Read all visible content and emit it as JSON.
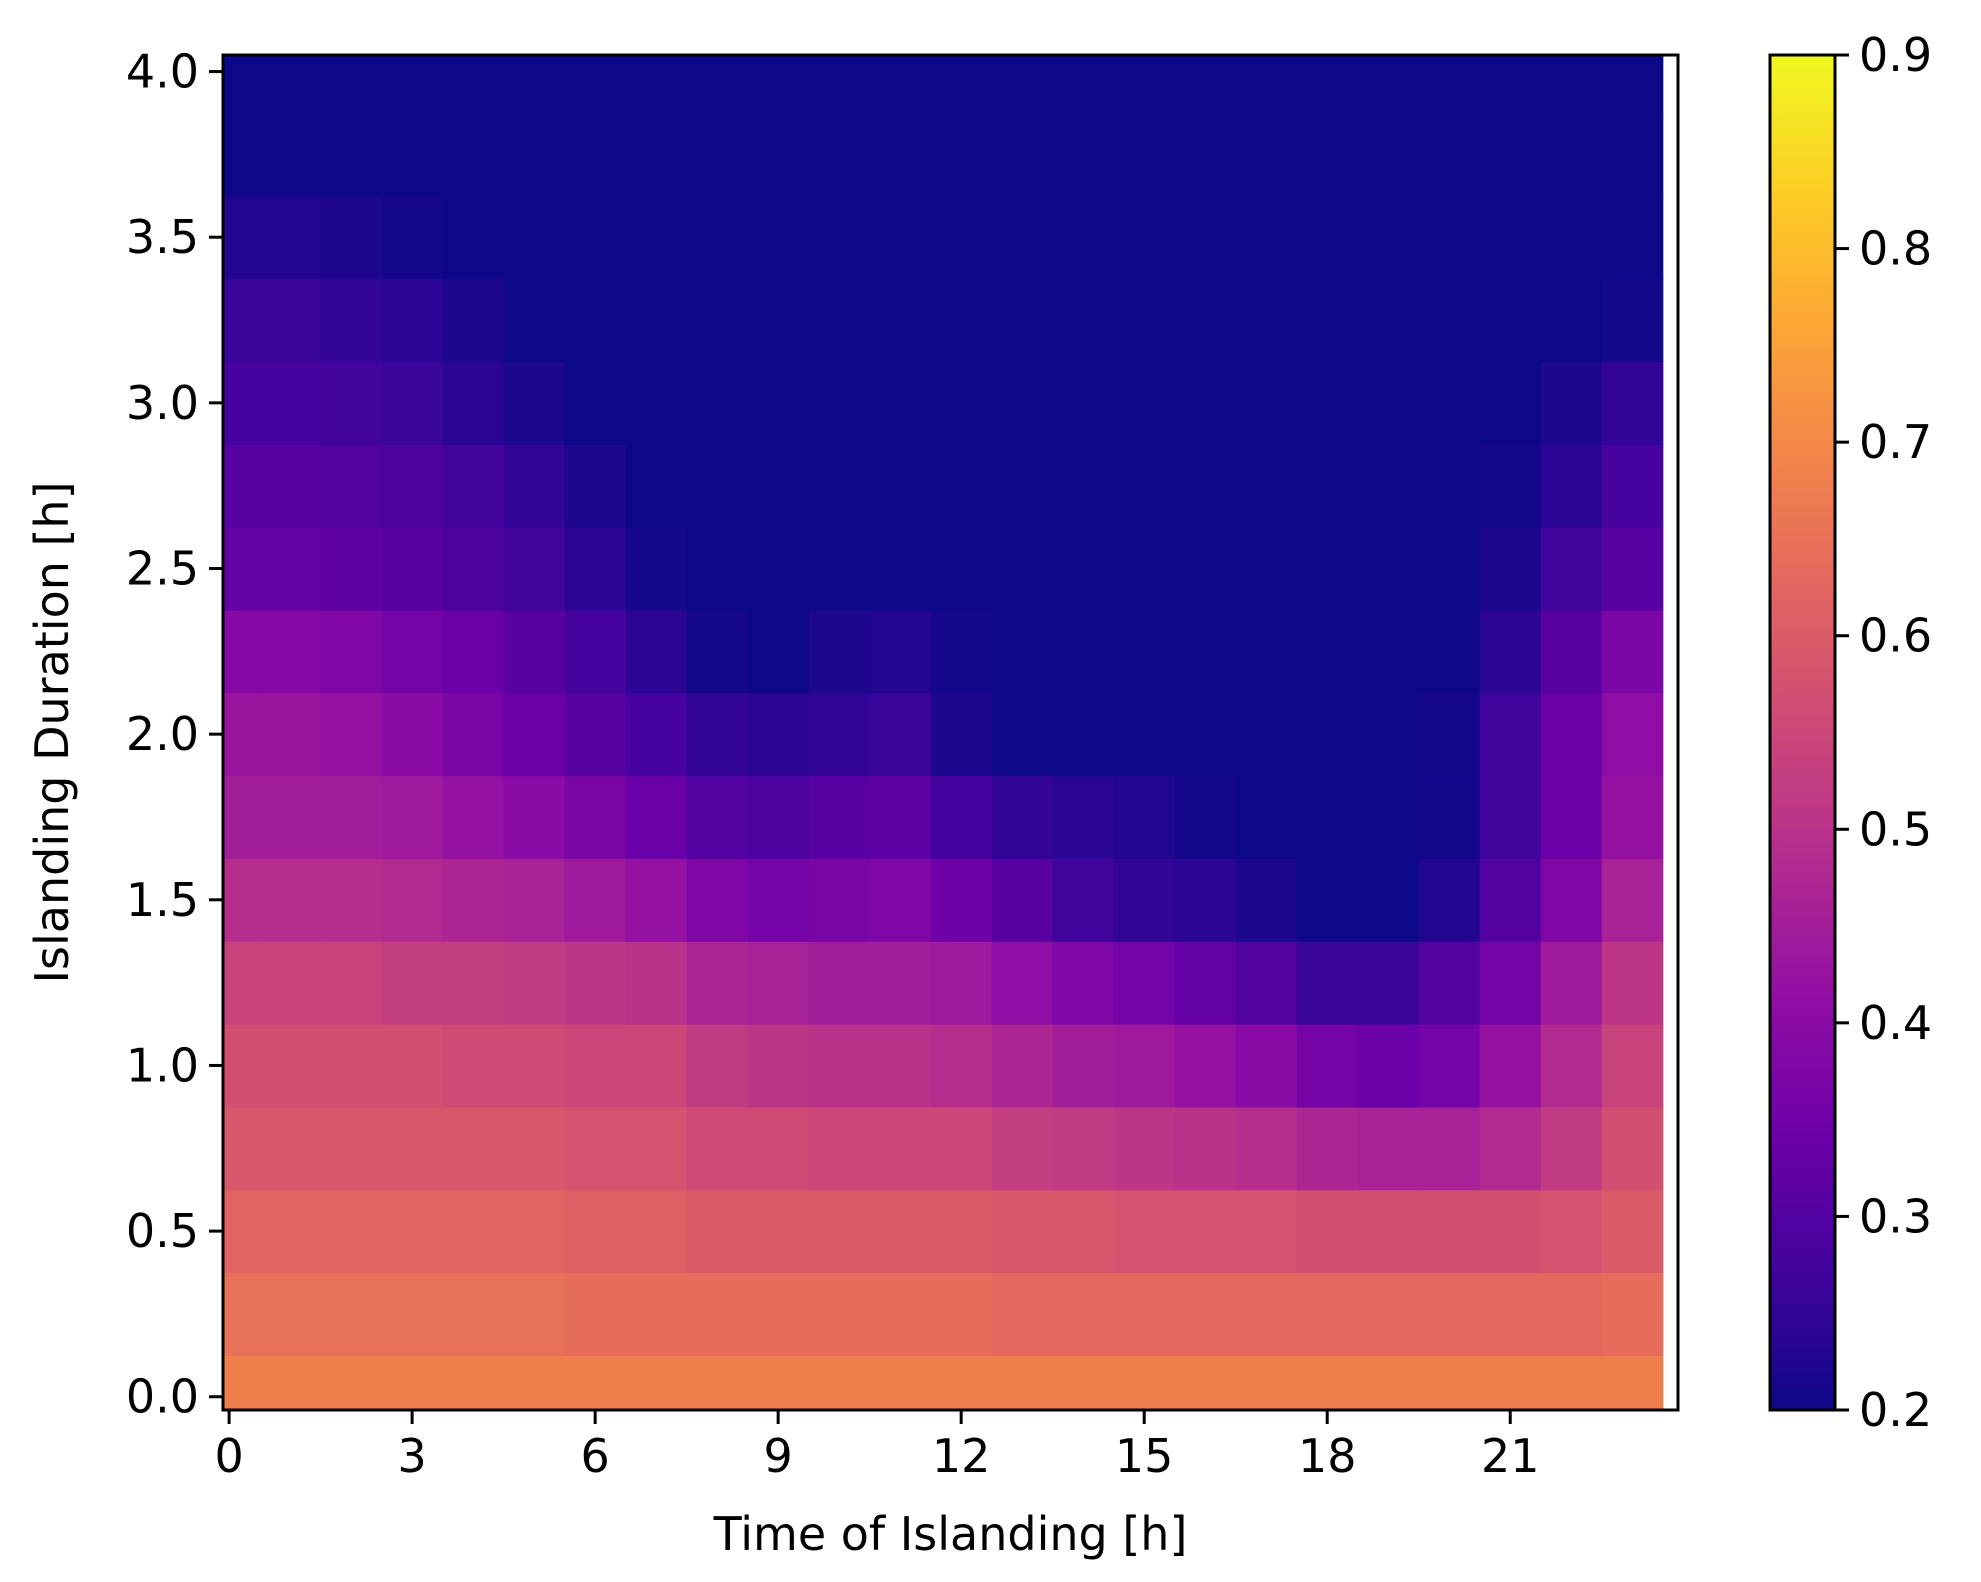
{
  "chart_data": {
    "type": "heatmap",
    "title": "",
    "xlabel": "Time of Islanding [h]",
    "ylabel": "Islanding Duration [h]",
    "colormap": "plasma",
    "x": [
      0,
      1,
      2,
      3,
      4,
      5,
      6,
      7,
      8,
      9,
      10,
      11,
      12,
      13,
      14,
      15,
      16,
      17,
      18,
      19,
      20,
      21,
      22,
      23
    ],
    "y": [
      0.0,
      0.25,
      0.5,
      0.75,
      1.0,
      1.25,
      1.5,
      1.75,
      2.0,
      2.25,
      2.5,
      2.75,
      3.0,
      3.25,
      3.5,
      3.75,
      4.0
    ],
    "z_rows": [
      [
        0.68,
        0.68,
        0.68,
        0.68,
        0.68,
        0.68,
        0.68,
        0.68,
        0.68,
        0.68,
        0.68,
        0.68,
        0.68,
        0.68,
        0.68,
        0.68,
        0.68,
        0.68,
        0.68,
        0.68,
        0.68,
        0.68,
        0.68,
        0.68
      ],
      [
        0.65,
        0.65,
        0.65,
        0.65,
        0.65,
        0.65,
        0.64,
        0.64,
        0.64,
        0.64,
        0.64,
        0.64,
        0.64,
        0.63,
        0.63,
        0.63,
        0.63,
        0.63,
        0.63,
        0.63,
        0.63,
        0.63,
        0.63,
        0.64
      ],
      [
        0.62,
        0.62,
        0.62,
        0.62,
        0.62,
        0.62,
        0.61,
        0.61,
        0.6,
        0.6,
        0.6,
        0.6,
        0.6,
        0.59,
        0.59,
        0.58,
        0.58,
        0.58,
        0.57,
        0.57,
        0.57,
        0.57,
        0.58,
        0.6
      ],
      [
        0.59,
        0.59,
        0.59,
        0.59,
        0.59,
        0.59,
        0.58,
        0.58,
        0.56,
        0.56,
        0.55,
        0.55,
        0.55,
        0.53,
        0.52,
        0.51,
        0.5,
        0.49,
        0.47,
        0.46,
        0.46,
        0.48,
        0.52,
        0.57
      ],
      [
        0.57,
        0.57,
        0.57,
        0.57,
        0.56,
        0.56,
        0.55,
        0.55,
        0.52,
        0.51,
        0.5,
        0.5,
        0.49,
        0.47,
        0.45,
        0.44,
        0.42,
        0.4,
        0.36,
        0.34,
        0.36,
        0.42,
        0.48,
        0.54
      ],
      [
        0.54,
        0.54,
        0.54,
        0.53,
        0.53,
        0.52,
        0.51,
        0.5,
        0.47,
        0.46,
        0.45,
        0.45,
        0.44,
        0.41,
        0.38,
        0.36,
        0.33,
        0.3,
        0.26,
        0.26,
        0.3,
        0.36,
        0.44,
        0.51
      ],
      [
        0.49,
        0.49,
        0.49,
        0.48,
        0.47,
        0.46,
        0.44,
        0.42,
        0.38,
        0.36,
        0.37,
        0.38,
        0.35,
        0.31,
        0.27,
        0.25,
        0.24,
        0.22,
        0.2,
        0.2,
        0.23,
        0.3,
        0.38,
        0.46
      ],
      [
        0.45,
        0.45,
        0.45,
        0.44,
        0.42,
        0.4,
        0.37,
        0.34,
        0.3,
        0.29,
        0.31,
        0.32,
        0.28,
        0.25,
        0.24,
        0.23,
        0.21,
        0.2,
        0.2,
        0.2,
        0.21,
        0.27,
        0.34,
        0.42
      ],
      [
        0.43,
        0.43,
        0.42,
        0.4,
        0.37,
        0.34,
        0.31,
        0.28,
        0.25,
        0.24,
        0.25,
        0.26,
        0.22,
        0.2,
        0.2,
        0.2,
        0.2,
        0.2,
        0.2,
        0.2,
        0.21,
        0.27,
        0.34,
        0.41
      ],
      [
        0.39,
        0.39,
        0.38,
        0.36,
        0.34,
        0.31,
        0.28,
        0.24,
        0.21,
        0.2,
        0.22,
        0.23,
        0.21,
        0.2,
        0.2,
        0.2,
        0.2,
        0.2,
        0.2,
        0.2,
        0.2,
        0.24,
        0.31,
        0.37
      ],
      [
        0.33,
        0.33,
        0.32,
        0.31,
        0.29,
        0.27,
        0.24,
        0.21,
        0.2,
        0.2,
        0.2,
        0.2,
        0.2,
        0.2,
        0.2,
        0.2,
        0.2,
        0.2,
        0.2,
        0.2,
        0.2,
        0.22,
        0.27,
        0.31
      ],
      [
        0.31,
        0.31,
        0.3,
        0.29,
        0.27,
        0.25,
        0.22,
        0.2,
        0.2,
        0.2,
        0.2,
        0.2,
        0.2,
        0.2,
        0.2,
        0.2,
        0.2,
        0.2,
        0.2,
        0.2,
        0.2,
        0.21,
        0.24,
        0.28
      ],
      [
        0.28,
        0.28,
        0.27,
        0.26,
        0.24,
        0.22,
        0.2,
        0.2,
        0.2,
        0.2,
        0.2,
        0.2,
        0.2,
        0.2,
        0.2,
        0.2,
        0.2,
        0.2,
        0.2,
        0.2,
        0.2,
        0.2,
        0.22,
        0.25
      ],
      [
        0.26,
        0.26,
        0.25,
        0.24,
        0.22,
        0.2,
        0.2,
        0.2,
        0.2,
        0.2,
        0.2,
        0.2,
        0.2,
        0.2,
        0.2,
        0.2,
        0.2,
        0.2,
        0.2,
        0.2,
        0.2,
        0.2,
        0.2,
        0.21
      ],
      [
        0.23,
        0.23,
        0.22,
        0.21,
        0.2,
        0.2,
        0.2,
        0.2,
        0.2,
        0.2,
        0.2,
        0.2,
        0.2,
        0.2,
        0.2,
        0.2,
        0.2,
        0.2,
        0.2,
        0.2,
        0.2,
        0.2,
        0.2,
        0.2
      ],
      [
        0.2,
        0.2,
        0.2,
        0.2,
        0.2,
        0.2,
        0.2,
        0.2,
        0.2,
        0.2,
        0.2,
        0.2,
        0.2,
        0.2,
        0.2,
        0.2,
        0.2,
        0.2,
        0.2,
        0.2,
        0.2,
        0.2,
        0.2,
        0.2
      ],
      [
        0.2,
        0.2,
        0.2,
        0.2,
        0.2,
        0.2,
        0.2,
        0.2,
        0.2,
        0.2,
        0.2,
        0.2,
        0.2,
        0.2,
        0.2,
        0.2,
        0.2,
        0.2,
        0.2,
        0.2,
        0.2,
        0.2,
        0.2,
        0.2
      ]
    ],
    "x_ticks": [
      0,
      3,
      6,
      9,
      12,
      15,
      18,
      21
    ],
    "x_tick_labels": [
      "0",
      "3",
      "6",
      "9",
      "12",
      "15",
      "18",
      "21"
    ],
    "xlim": [
      -0.1,
      23.75
    ],
    "y_ticks": [
      0.0,
      0.5,
      1.0,
      1.5,
      2.0,
      2.5,
      3.0,
      3.5,
      4.0
    ],
    "y_tick_labels": [
      "0.0",
      "0.5",
      "1.0",
      "1.5",
      "2.0",
      "2.5",
      "3.0",
      "3.5",
      "4.0"
    ],
    "ylim": [
      -0.04,
      4.05
    ],
    "colorbar": {
      "range": [
        0.2,
        0.9
      ],
      "ticks": [
        0.2,
        0.3,
        0.4,
        0.5,
        0.6,
        0.7,
        0.8,
        0.9
      ],
      "tick_labels": [
        "0.2",
        "0.3",
        "0.4",
        "0.5",
        "0.6",
        "0.7",
        "0.8",
        "0.9"
      ]
    },
    "grid": false
  }
}
